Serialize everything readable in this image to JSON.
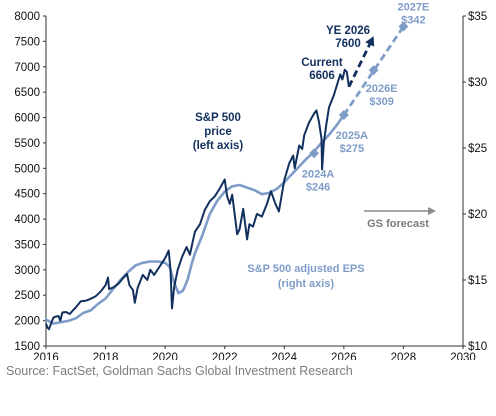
{
  "chart_data": {
    "type": "line",
    "title": "",
    "x_ticks": [
      "2016",
      "2018",
      "2020",
      "2022",
      "2024",
      "2026",
      "2028",
      "2030"
    ],
    "xlim": [
      2016,
      2030
    ],
    "y_left": {
      "lim": [
        1500,
        8000
      ],
      "ticks": [
        "1500",
        "2000",
        "2500",
        "3000",
        "3500",
        "4000",
        "4500",
        "5000",
        "5500",
        "6000",
        "6500",
        "7000",
        "7500",
        "8000"
      ]
    },
    "y_right": {
      "lim": [
        10,
        35
      ],
      "ticks": [
        "$10",
        "$15",
        "$20",
        "$25",
        "$30",
        "$35"
      ]
    },
    "grid": false,
    "colors": {
      "price": "#12305e",
      "eps": "#7f9cc9",
      "arrow": "#8a8a8a",
      "axis": "#333333"
    },
    "series": [
      {
        "name": "S&P 500 price (left axis)",
        "axis": "left",
        "points": [
          [
            2016.0,
            1940
          ],
          [
            2016.05,
            1860
          ],
          [
            2016.1,
            1830
          ],
          [
            2016.16,
            1930
          ],
          [
            2016.25,
            2060
          ],
          [
            2016.33,
            2080
          ],
          [
            2016.42,
            2090
          ],
          [
            2016.48,
            2000
          ],
          [
            2016.55,
            2160
          ],
          [
            2016.67,
            2170
          ],
          [
            2016.8,
            2130
          ],
          [
            2016.9,
            2200
          ],
          [
            2017.0,
            2260
          ],
          [
            2017.17,
            2380
          ],
          [
            2017.33,
            2390
          ],
          [
            2017.5,
            2430
          ],
          [
            2017.67,
            2480
          ],
          [
            2017.83,
            2570
          ],
          [
            2018.0,
            2700
          ],
          [
            2018.08,
            2850
          ],
          [
            2018.12,
            2620
          ],
          [
            2018.25,
            2650
          ],
          [
            2018.42,
            2720
          ],
          [
            2018.58,
            2830
          ],
          [
            2018.72,
            2920
          ],
          [
            2018.8,
            2700
          ],
          [
            2018.92,
            2600
          ],
          [
            2018.98,
            2350
          ],
          [
            2019.08,
            2650
          ],
          [
            2019.25,
            2900
          ],
          [
            2019.4,
            2800
          ],
          [
            2019.5,
            3000
          ],
          [
            2019.63,
            2900
          ],
          [
            2019.83,
            3080
          ],
          [
            2020.0,
            3230
          ],
          [
            2020.12,
            3380
          ],
          [
            2020.18,
            3000
          ],
          [
            2020.23,
            2240
          ],
          [
            2020.3,
            2650
          ],
          [
            2020.42,
            3000
          ],
          [
            2020.58,
            3270
          ],
          [
            2020.72,
            3450
          ],
          [
            2020.83,
            3300
          ],
          [
            2021.0,
            3750
          ],
          [
            2021.17,
            3900
          ],
          [
            2021.33,
            4180
          ],
          [
            2021.5,
            4350
          ],
          [
            2021.67,
            4450
          ],
          [
            2021.83,
            4600
          ],
          [
            2022.0,
            4780
          ],
          [
            2022.08,
            4450
          ],
          [
            2022.17,
            4300
          ],
          [
            2022.25,
            4480
          ],
          [
            2022.42,
            3700
          ],
          [
            2022.5,
            3800
          ],
          [
            2022.62,
            4200
          ],
          [
            2022.75,
            3600
          ],
          [
            2022.83,
            3900
          ],
          [
            2022.95,
            3850
          ],
          [
            2023.08,
            4100
          ],
          [
            2023.25,
            4050
          ],
          [
            2023.42,
            4300
          ],
          [
            2023.55,
            4550
          ],
          [
            2023.7,
            4300
          ],
          [
            2023.82,
            4150
          ],
          [
            2024.0,
            4770
          ],
          [
            2024.17,
            5100
          ],
          [
            2024.3,
            5250
          ],
          [
            2024.35,
            5000
          ],
          [
            2024.5,
            5450
          ],
          [
            2024.6,
            5380
          ],
          [
            2024.67,
            5650
          ],
          [
            2024.83,
            5900
          ],
          [
            2025.0,
            6080
          ],
          [
            2025.08,
            6140
          ],
          [
            2025.17,
            5900
          ],
          [
            2025.25,
            5580
          ],
          [
            2025.27,
            4980
          ],
          [
            2025.33,
            5520
          ],
          [
            2025.42,
            5900
          ],
          [
            2025.5,
            6200
          ],
          [
            2025.67,
            6450
          ],
          [
            2025.8,
            6700
          ],
          [
            2025.88,
            6850
          ],
          [
            2025.95,
            6750
          ],
          [
            2026.03,
            6940
          ],
          [
            2026.1,
            6900
          ],
          [
            2026.17,
            6606
          ]
        ]
      },
      {
        "name": "S&P 500 adjusted EPS (right axis)",
        "axis": "right",
        "points": [
          [
            2016.0,
            12.0
          ],
          [
            2016.25,
            11.7
          ],
          [
            2016.5,
            11.8
          ],
          [
            2016.75,
            11.9
          ],
          [
            2017.0,
            12.1
          ],
          [
            2017.25,
            12.5
          ],
          [
            2017.5,
            12.7
          ],
          [
            2017.75,
            13.2
          ],
          [
            2018.0,
            13.6
          ],
          [
            2018.25,
            14.3
          ],
          [
            2018.5,
            15.0
          ],
          [
            2018.75,
            15.6
          ],
          [
            2019.0,
            16.1
          ],
          [
            2019.25,
            16.3
          ],
          [
            2019.5,
            16.4
          ],
          [
            2019.75,
            16.4
          ],
          [
            2020.0,
            16.3
          ],
          [
            2020.15,
            16.0
          ],
          [
            2020.3,
            14.8
          ],
          [
            2020.45,
            14.0
          ],
          [
            2020.6,
            14.2
          ],
          [
            2020.75,
            15.0
          ],
          [
            2020.9,
            16.3
          ],
          [
            2021.0,
            17.0
          ],
          [
            2021.25,
            18.4
          ],
          [
            2021.5,
            20.0
          ],
          [
            2021.75,
            21.0
          ],
          [
            2022.0,
            21.7
          ],
          [
            2022.25,
            22.1
          ],
          [
            2022.5,
            22.2
          ],
          [
            2022.75,
            22.0
          ],
          [
            2023.0,
            21.8
          ],
          [
            2023.25,
            21.5
          ],
          [
            2023.5,
            21.6
          ],
          [
            2023.75,
            21.9
          ],
          [
            2024.0,
            22.4
          ],
          [
            2024.25,
            23.0
          ],
          [
            2024.5,
            23.6
          ],
          [
            2024.75,
            24.2
          ],
          [
            2024.95,
            24.6
          ],
          [
            2025.25,
            25.4
          ],
          [
            2025.5,
            26.0
          ],
          [
            2025.75,
            26.7
          ],
          [
            2026.0,
            27.5
          ]
        ]
      }
    ],
    "forecast_price": {
      "name": "YE 2026",
      "points": [
        [
          2026.17,
          6606
        ],
        [
          2027.0,
          7600
        ]
      ]
    },
    "forecast_eps": {
      "line": [
        [
          2026.0,
          27.5
        ],
        [
          2028.0,
          34.2
        ]
      ],
      "markers": [
        {
          "x": 2025.0,
          "y": 24.6,
          "label": "2024A",
          "value": "$246"
        },
        {
          "x": 2026.0,
          "y": 27.5,
          "label": "2025A",
          "value": "$275"
        },
        {
          "x": 2027.0,
          "y": 30.9,
          "label": "2026E",
          "value": "$309"
        },
        {
          "x": 2028.0,
          "y": 34.2,
          "label": "2027E",
          "value": "$342"
        }
      ]
    },
    "annotations": {
      "price_label": [
        "S&P 500",
        "price",
        "(left axis)"
      ],
      "eps_label": [
        "S&P 500 adjusted EPS",
        "(right axis)"
      ],
      "current": [
        "Current",
        "6606"
      ],
      "ye": [
        "YE 2026",
        "7600"
      ],
      "forecast": "GS forecast",
      "source": "Source: FactSet, Goldman Sachs Global Investment Research"
    }
  }
}
